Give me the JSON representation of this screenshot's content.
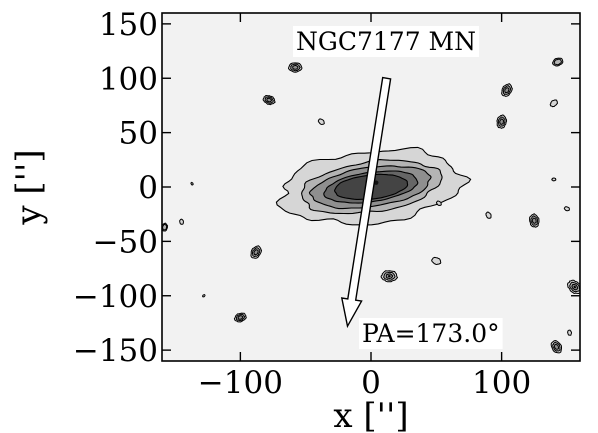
{
  "chart_data": {
    "type": "contour",
    "title": "",
    "xlabel": "x ['']",
    "ylabel": "y ['']",
    "xlim": [
      -160,
      160
    ],
    "ylim": [
      -160,
      160
    ],
    "xticks": [
      -100,
      0,
      100
    ],
    "xtick_labels": [
      "−100",
      "0",
      "100"
    ],
    "yticks": [
      150,
      100,
      50,
      0,
      -50,
      -100,
      -150
    ],
    "ytick_labels": [
      "150",
      "100",
      "50",
      "0",
      "−50",
      "−100",
      "−150"
    ],
    "grid": false,
    "background_color": "#f2f2f2",
    "contour_colors": [
      "#f2f2f2",
      "#d6d6d6",
      "#b4b4b4",
      "#8f8f8f",
      "#666666",
      "#444444"
    ],
    "annotations": {
      "object_name": "NGC7177 MN",
      "position_angle": "PA=173.0°"
    },
    "position_angle_deg": 173.0,
    "arrow": {
      "from": [
        12,
        100
      ],
      "to": [
        -18,
        -128
      ]
    },
    "galaxy": {
      "center": [
        0,
        0
      ],
      "isophotes": [
        {
          "level": 1,
          "a": 70,
          "b": 33,
          "angle_deg": -6
        },
        {
          "level": 2,
          "a": 54,
          "b": 23,
          "angle_deg": -8
        },
        {
          "level": 3,
          "a": 46,
          "b": 18,
          "angle_deg": -8
        },
        {
          "level": 4,
          "a": 36,
          "b": 13.5,
          "angle_deg": -8
        },
        {
          "level": 5,
          "a": 28,
          "b": 11,
          "angle_deg": -6
        }
      ]
    },
    "sources": [
      {
        "x": -58,
        "y": 110,
        "r": 5,
        "levels": 3
      },
      {
        "x": -78,
        "y": 80,
        "r": 4.5,
        "levels": 3
      },
      {
        "x": -38,
        "y": 60,
        "r": 2.5,
        "levels": 1
      },
      {
        "x": -137,
        "y": 3,
        "r": 1,
        "levels": 1
      },
      {
        "x": -145,
        "y": -32,
        "r": 2,
        "levels": 1
      },
      {
        "x": -158,
        "y": -37,
        "r": 3,
        "levels": 2
      },
      {
        "x": -88,
        "y": -60,
        "r": 5,
        "levels": 3
      },
      {
        "x": -128,
        "y": -100,
        "r": 1,
        "levels": 1
      },
      {
        "x": -100,
        "y": -120,
        "r": 4.5,
        "levels": 3
      },
      {
        "x": 14,
        "y": -82,
        "r": 6,
        "levels": 4
      },
      {
        "x": 50,
        "y": -68,
        "r": 3.5,
        "levels": 1
      },
      {
        "x": 52,
        "y": -15,
        "r": 2,
        "levels": 1
      },
      {
        "x": 90,
        "y": -26,
        "r": 2.5,
        "levels": 1
      },
      {
        "x": 125,
        "y": -31,
        "r": 5,
        "levels": 3
      },
      {
        "x": 100,
        "y": 60,
        "r": 5,
        "levels": 3
      },
      {
        "x": 104,
        "y": 89,
        "r": 5,
        "levels": 3
      },
      {
        "x": 140,
        "y": 77,
        "r": 3,
        "levels": 1
      },
      {
        "x": 143,
        "y": 115,
        "r": 4,
        "levels": 2
      },
      {
        "x": 140,
        "y": 7,
        "r": 1.5,
        "levels": 1
      },
      {
        "x": 150,
        "y": -20,
        "r": 2,
        "levels": 1
      },
      {
        "x": 156,
        "y": -92,
        "r": 6,
        "levels": 4
      },
      {
        "x": 142,
        "y": -147,
        "r": 5,
        "levels": 3
      },
      {
        "x": 152,
        "y": -134,
        "r": 2,
        "levels": 1
      }
    ]
  }
}
